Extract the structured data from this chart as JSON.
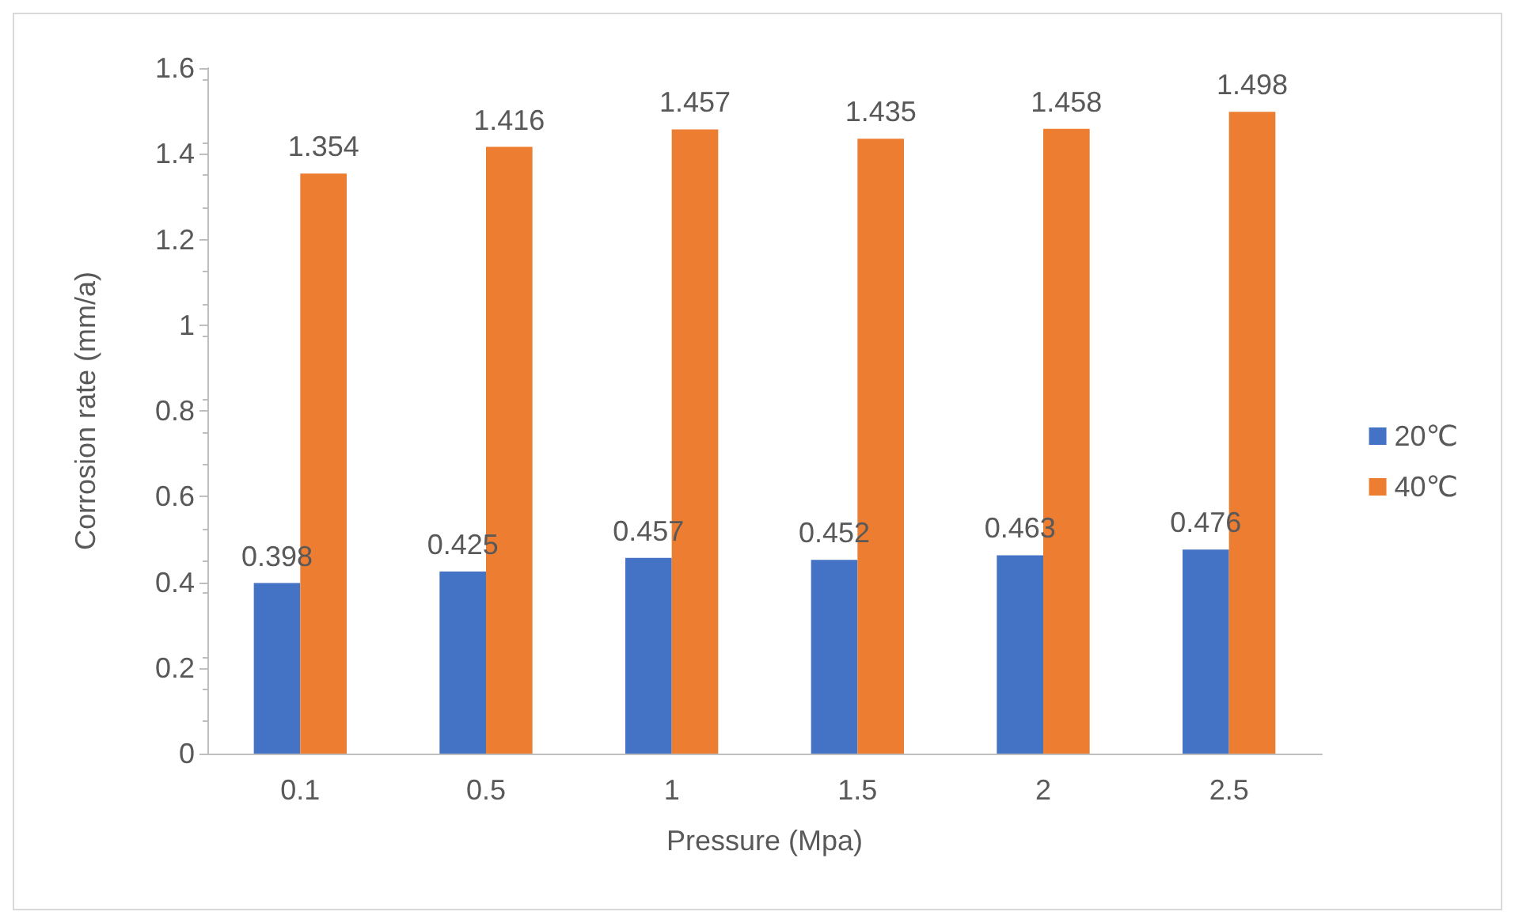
{
  "chart_data": {
    "type": "bar",
    "xlabel": "Pressure (Mpa)",
    "ylabel": "Corrosion rate (mm/a)",
    "categories": [
      "0.1",
      "0.5",
      "1",
      "1.5",
      "2",
      "2.5"
    ],
    "series": [
      {
        "name": "20℃",
        "color": "#4472c4",
        "values": [
          0.398,
          0.425,
          0.457,
          0.452,
          0.463,
          0.476
        ]
      },
      {
        "name": "40℃",
        "color": "#ed7d31",
        "values": [
          1.354,
          1.416,
          1.457,
          1.435,
          1.458,
          1.498
        ]
      }
    ],
    "ylim": [
      0,
      1.6
    ],
    "yticks": [
      0,
      0.2,
      0.4,
      0.6,
      0.8,
      1,
      1.2,
      1.4,
      1.6
    ],
    "grid": false,
    "legend": "right",
    "data_labels": true
  }
}
